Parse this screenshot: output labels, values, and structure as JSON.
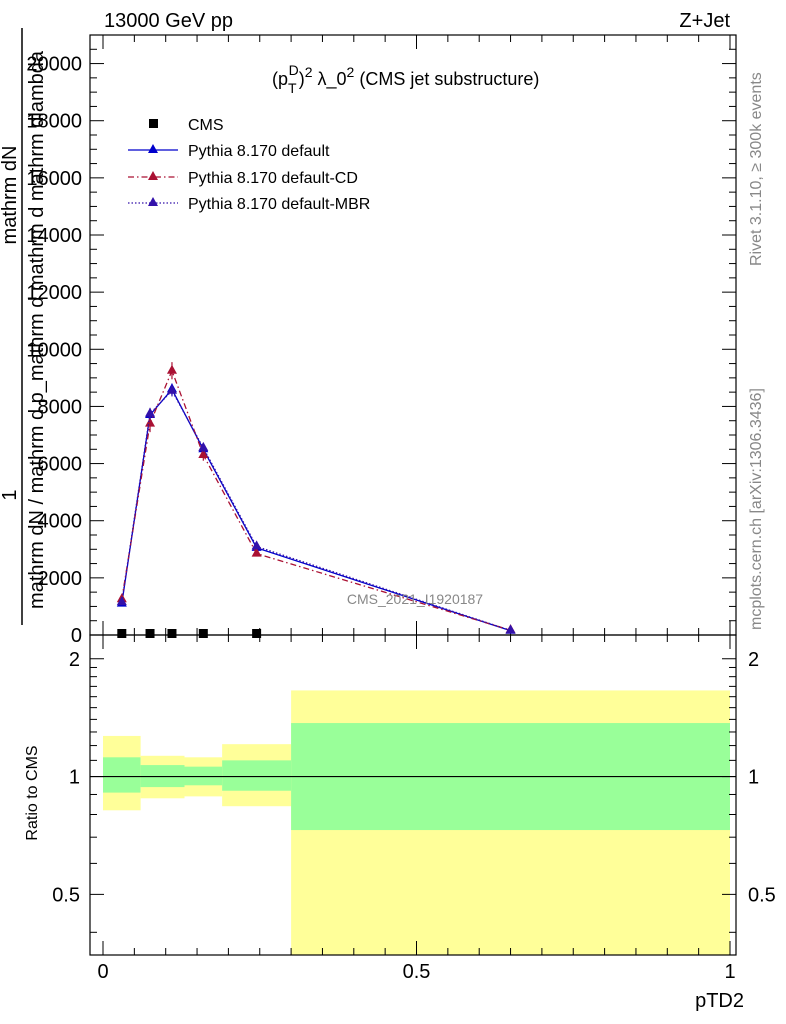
{
  "header": {
    "left": "13000 GeV pp",
    "right": "Z+Jet"
  },
  "side_text": {
    "rivet": "Rivet 3.1.10, ≥ 300k events",
    "mcplots": "mcplots.cern.ch [arXiv:1306.3436]"
  },
  "watermark": "CMS_2021_I1920187",
  "ylabel_main": {
    "numerator": "1",
    "line1": "mathrm dN / mathrm d p_mathrm d mathrm d mathrm dlambda",
    "line2": "mathrm dN"
  },
  "colors": {
    "pythia_default": "#0000cc",
    "pythia_cd": "#aa1133",
    "pythia_mbr": "#3311aa",
    "band_inner": "#99ff99",
    "band_outer": "#ffff99"
  },
  "chart_data": [
    {
      "type": "line",
      "panel": "main",
      "title": "(p_T^D)^2 λ_0^2 (CMS jet substructure)",
      "title_parts": {
        "p": "(p",
        "sub": "T",
        "sup1": "D",
        "close": ")",
        "sup2": "2",
        "lam": " λ_0",
        "sup3": "2",
        "rest": " (CMS jet substructure)"
      },
      "xlabel": "pTD2",
      "ylabel": "1 / mathrm dN  mathrm dN / mathrm d p_mathrm d mathrm d mathrm dlambda",
      "xlim": [
        0,
        1
      ],
      "ylim": [
        0,
        21000
      ],
      "ytick_values": [
        0,
        2000,
        4000,
        6000,
        8000,
        10000,
        12000,
        14000,
        16000,
        18000,
        20000
      ],
      "ytick_labels": [
        "0",
        "2000",
        "4000",
        "6000",
        "8000",
        "10000",
        "12000",
        "14000",
        "16000",
        "18000",
        "20000"
      ],
      "legend_position": "top-left",
      "legend": [
        "CMS",
        "Pythia 8.170 default",
        "Pythia 8.170 default-CD",
        "Pythia 8.170 default-MBR"
      ],
      "series": [
        {
          "name": "CMS",
          "style": "square-markers",
          "x": [
            0.03,
            0.075,
            0.11,
            0.16,
            0.245
          ],
          "y": [
            0,
            0,
            0,
            0,
            0
          ]
        },
        {
          "name": "Pythia 8.170 default",
          "style": "solid",
          "x": [
            0.03,
            0.075,
            0.11,
            0.16,
            0.245,
            0.65
          ],
          "y": [
            1100,
            7700,
            8600,
            6500,
            3050,
            150
          ],
          "err": [
            100,
            200,
            200,
            150,
            100,
            50
          ]
        },
        {
          "name": "Pythia 8.170 default-CD",
          "style": "dashdot",
          "x": [
            0.03,
            0.075,
            0.11,
            0.16,
            0.245,
            0.65
          ],
          "y": [
            1250,
            7400,
            9250,
            6300,
            2850,
            170
          ],
          "err": [
            120,
            300,
            300,
            200,
            100,
            50
          ]
        },
        {
          "name": "Pythia 8.170 default-MBR",
          "style": "dotted",
          "x": [
            0.03,
            0.075,
            0.11,
            0.16,
            0.245,
            0.65
          ],
          "y": [
            1150,
            7750,
            8550,
            6550,
            3100,
            160
          ],
          "err": [
            100,
            200,
            200,
            150,
            100,
            50
          ]
        }
      ]
    },
    {
      "type": "area",
      "panel": "ratio",
      "ylabel": "Ratio to CMS",
      "xlabel": "pTD2",
      "xlim": [
        0,
        1
      ],
      "ylim": [
        0.35,
        2.3
      ],
      "ytick_labels_major": [
        "0.5",
        "1",
        "2"
      ],
      "xtick_labels": [
        "0",
        "0.5",
        "1"
      ],
      "reference_line": 1,
      "bins": [
        {
          "x0": 0.0,
          "x1": 0.06,
          "inner": [
            0.91,
            1.12
          ],
          "outer": [
            0.82,
            1.27
          ]
        },
        {
          "x0": 0.06,
          "x1": 0.13,
          "inner": [
            0.94,
            1.07
          ],
          "outer": [
            0.88,
            1.13
          ]
        },
        {
          "x0": 0.13,
          "x1": 0.19,
          "inner": [
            0.95,
            1.06
          ],
          "outer": [
            0.89,
            1.12
          ]
        },
        {
          "x0": 0.19,
          "x1": 0.3,
          "inner": [
            0.92,
            1.1
          ],
          "outer": [
            0.84,
            1.21
          ]
        },
        {
          "x0": 0.3,
          "x1": 1.0,
          "inner": [
            0.73,
            1.37
          ],
          "outer": [
            0.35,
            1.66
          ]
        }
      ]
    }
  ]
}
